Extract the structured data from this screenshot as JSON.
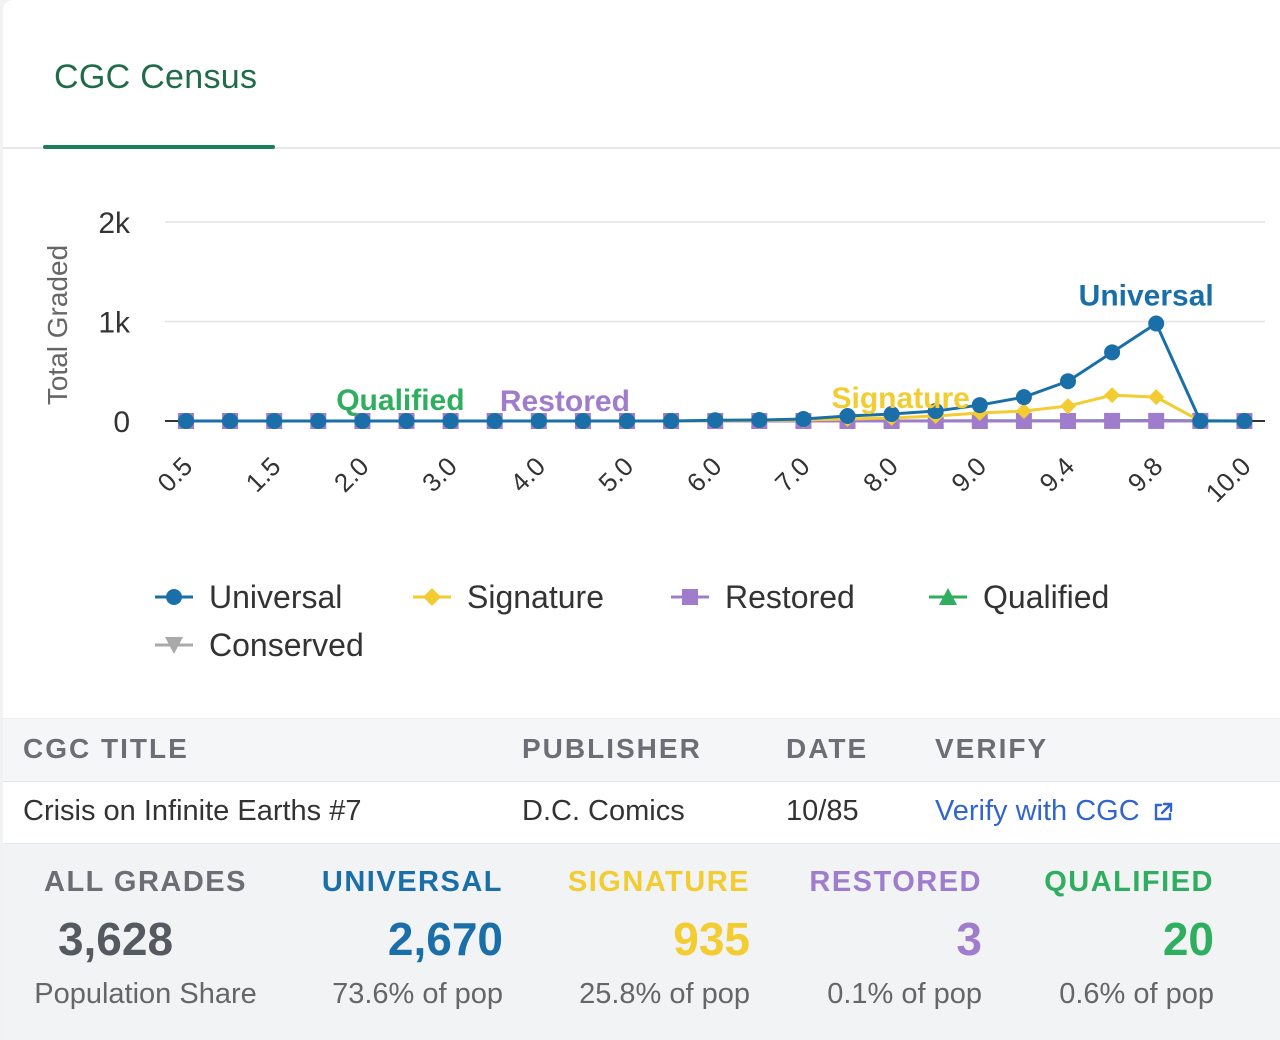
{
  "tabs": [
    {
      "label": "CGC Census",
      "active": true
    }
  ],
  "chart_data": {
    "type": "line",
    "ylabel": "Total Graded",
    "yticks": [
      "0",
      "1k",
      "2k"
    ],
    "ylim": [
      0,
      2000
    ],
    "x": [
      "0.5",
      "1.0",
      "1.5",
      "1.8",
      "2.0",
      "2.5",
      "3.0",
      "3.5",
      "4.0",
      "4.5",
      "5.0",
      "5.5",
      "6.0",
      "6.5",
      "7.0",
      "7.5",
      "8.0",
      "8.5",
      "9.0",
      "9.2",
      "9.4",
      "9.6",
      "9.8",
      "9.9",
      "10.0"
    ],
    "xtick_labels": [
      "0.5",
      "1.5",
      "2.0",
      "3.0",
      "4.0",
      "5.0",
      "6.0",
      "7.0",
      "8.0",
      "9.0",
      "9.4",
      "9.8",
      "10.0"
    ],
    "series": [
      {
        "name": "Universal",
        "color": "#1a6fa8",
        "marker": "circle",
        "values": [
          0,
          0,
          0,
          0,
          0,
          0,
          0,
          0,
          0,
          0,
          0,
          0,
          8,
          10,
          20,
          50,
          70,
          100,
          160,
          240,
          400,
          690,
          980,
          0,
          0
        ]
      },
      {
        "name": "Signature",
        "color": "#f2cc30",
        "marker": "diamond",
        "values": [
          0,
          0,
          0,
          0,
          0,
          0,
          0,
          0,
          0,
          0,
          0,
          0,
          2,
          5,
          10,
          20,
          30,
          50,
          80,
          100,
          150,
          260,
          240,
          0,
          0
        ]
      },
      {
        "name": "Restored",
        "color": "#a07ccc",
        "marker": "square",
        "values": [
          0,
          0,
          0,
          0,
          0,
          0,
          0,
          0,
          0,
          0,
          0,
          0,
          0,
          0,
          0,
          0,
          0,
          0,
          0,
          0,
          0,
          1,
          1,
          1,
          0
        ]
      },
      {
        "name": "Qualified",
        "color": "#2eae5e",
        "marker": "triangle",
        "values": [
          0,
          0,
          0,
          0,
          0,
          0,
          0,
          0,
          0,
          0,
          0,
          0,
          0,
          0,
          0,
          0,
          0,
          1,
          2,
          2,
          3,
          4,
          5,
          3,
          0
        ]
      },
      {
        "name": "Conserved",
        "color": "#a9a9a9",
        "marker": "triangle-down",
        "values": [
          0,
          0,
          0,
          0,
          0,
          0,
          0,
          0,
          0,
          0,
          0,
          0,
          0,
          0,
          0,
          0,
          0,
          0,
          0,
          0,
          0,
          0,
          0,
          0,
          0
        ]
      }
    ],
    "annotations": [
      {
        "text": "Universal",
        "series": "Universal",
        "x": "9.8",
        "color": "#1a6fa8"
      },
      {
        "text": "Signature",
        "series": "Signature",
        "x": "8.5",
        "color": "#f2cc30"
      },
      {
        "text": "Restored",
        "series": "Restored",
        "x": "4.5",
        "color": "#a07ccc"
      },
      {
        "text": "Qualified",
        "series": "Qualified",
        "x": "2.0",
        "color": "#2eae5e"
      }
    ],
    "grid": true,
    "legend": "bottom"
  },
  "table": {
    "headers": {
      "title": "CGC TITLE",
      "publisher": "PUBLISHER",
      "date": "DATE",
      "verify": "VERIFY"
    },
    "row": {
      "title": "Crisis on Infinite Earths #7",
      "publisher": "D.C. Comics",
      "date": "10/85",
      "verify": "Verify with CGC",
      "verify_icon": "external-link-icon"
    }
  },
  "stats": [
    {
      "label": "ALL GRADES",
      "value": "3,628",
      "share": "Population Share",
      "color": "#6b6f75"
    },
    {
      "label": "UNIVERSAL",
      "value": "2,670",
      "share": "73.6% of pop",
      "color": "#1a6fa8"
    },
    {
      "label": "SIGNATURE",
      "value": "935",
      "share": "25.8% of pop",
      "color": "#f2cc30"
    },
    {
      "label": "RESTORED",
      "value": "3",
      "share": "0.1% of pop",
      "color": "#a07ccc"
    },
    {
      "label": "QUALIFIED",
      "value": "20",
      "share": "0.6% of pop",
      "color": "#2eae5e"
    }
  ]
}
